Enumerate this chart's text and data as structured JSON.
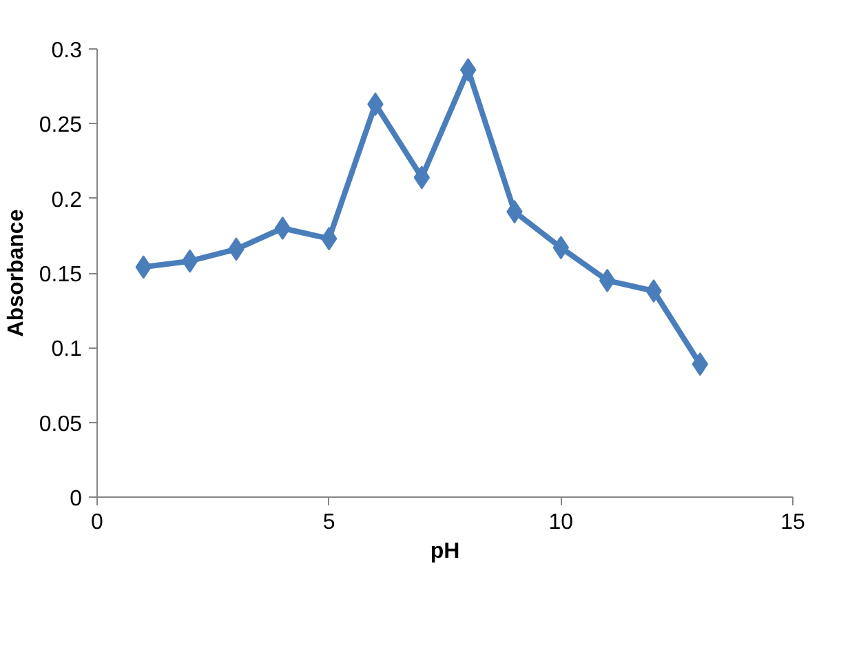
{
  "chart_data": {
    "type": "line",
    "xlabel": "pH",
    "ylabel": "Absorbance",
    "series": [
      {
        "color": "#4a7ebb",
        "x": [
          1,
          2,
          3,
          4,
          5,
          6,
          7,
          8,
          9,
          10,
          11,
          12,
          13
        ],
        "values": [
          0.154,
          0.158,
          0.166,
          0.18,
          0.173,
          0.263,
          0.214,
          0.286,
          0.191,
          0.167,
          0.145,
          0.138,
          0.089
        ]
      }
    ],
    "xlim": [
      0,
      15
    ],
    "xticks": [
      0,
      5,
      10,
      15
    ],
    "ylim": [
      0,
      0.3
    ],
    "yticks": [
      0,
      0.05,
      0.1,
      0.15,
      0.2,
      0.25,
      0.3
    ],
    "grid": false,
    "marker": "diamond",
    "line_style": "solid"
  }
}
